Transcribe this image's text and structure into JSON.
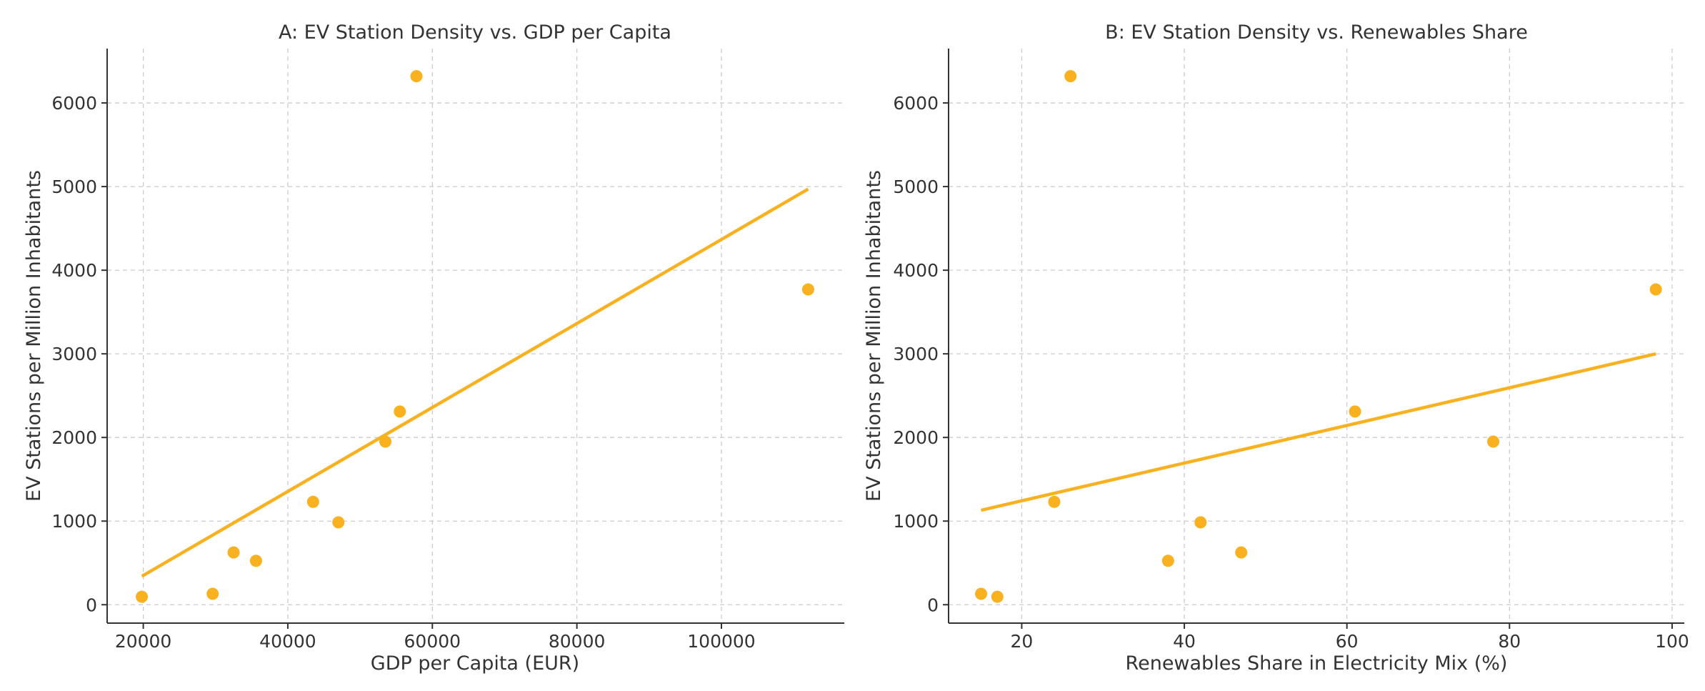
{
  "chart_data": [
    {
      "id": "A",
      "type": "scatter",
      "title": "A: EV Station Density vs. GDP per Capita",
      "xlabel": "GDP per Capita (EUR)",
      "ylabel": "EV Stations per Million Inhabitants",
      "xlim": [
        15000,
        117000
      ],
      "ylim": [
        -220,
        6650
      ],
      "xticks": [
        20000,
        40000,
        60000,
        80000,
        100000
      ],
      "xtick_labels": [
        "20000",
        "40000",
        "60000",
        "80000",
        "100000"
      ],
      "yticks": [
        0,
        1000,
        2000,
        3000,
        4000,
        5000,
        6000
      ],
      "ytick_labels": [
        "0",
        "1000",
        "2000",
        "3000",
        "4000",
        "5000",
        "6000"
      ],
      "grid": true,
      "points": [
        {
          "x": 19800,
          "y": 95
        },
        {
          "x": 29600,
          "y": 130
        },
        {
          "x": 32500,
          "y": 625
        },
        {
          "x": 35600,
          "y": 525
        },
        {
          "x": 43500,
          "y": 1230
        },
        {
          "x": 47000,
          "y": 985
        },
        {
          "x": 53500,
          "y": 1950
        },
        {
          "x": 55500,
          "y": 2310
        },
        {
          "x": 57800,
          "y": 6320
        },
        {
          "x": 112000,
          "y": 3770
        }
      ],
      "trendline": {
        "x": [
          19800,
          112000
        ],
        "y": [
          340,
          4970
        ]
      },
      "color": "#F9B11F"
    },
    {
      "id": "B",
      "type": "scatter",
      "title": "B: EV Station Density vs. Renewables Share",
      "xlabel": "Renewables Share in Electricity Mix (%)",
      "ylabel": "EV Stations per Million Inhabitants",
      "xlim": [
        11.0,
        101.5
      ],
      "ylim": [
        -220,
        6650
      ],
      "xticks": [
        20,
        40,
        60,
        80,
        100
      ],
      "xtick_labels": [
        "20",
        "40",
        "60",
        "80",
        "100"
      ],
      "yticks": [
        0,
        1000,
        2000,
        3000,
        4000,
        5000,
        6000
      ],
      "ytick_labels": [
        "0",
        "1000",
        "2000",
        "3000",
        "4000",
        "5000",
        "6000"
      ],
      "grid": true,
      "points": [
        {
          "x": 15,
          "y": 130
        },
        {
          "x": 17,
          "y": 95
        },
        {
          "x": 24,
          "y": 1230
        },
        {
          "x": 26,
          "y": 6320
        },
        {
          "x": 38,
          "y": 525
        },
        {
          "x": 42,
          "y": 985
        },
        {
          "x": 47,
          "y": 625
        },
        {
          "x": 61,
          "y": 2310
        },
        {
          "x": 78,
          "y": 1950
        },
        {
          "x": 98,
          "y": 3770
        }
      ],
      "trendline": {
        "x": [
          15,
          98
        ],
        "y": [
          1130,
          3000
        ]
      },
      "color": "#F9B11F"
    }
  ]
}
